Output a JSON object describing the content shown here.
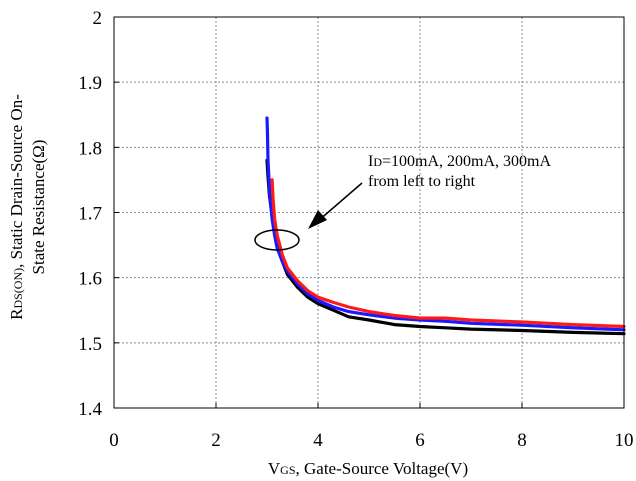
{
  "chart_data": {
    "type": "line",
    "xlim": [
      0,
      10
    ],
    "ylim": [
      1.4,
      2.0
    ],
    "xticks": [
      0,
      2,
      4,
      6,
      8,
      10
    ],
    "yticks": [
      1.4,
      1.5,
      1.6,
      1.7,
      1.8,
      1.9,
      2
    ],
    "xtick_labels": [
      "0",
      "2",
      "4",
      "6",
      "8",
      "10"
    ],
    "ytick_labels": [
      "1.4",
      "1.5",
      "1.6",
      "1.7",
      "1.8",
      "1.9",
      "2"
    ],
    "grid": true,
    "xlabel": {
      "main": "V",
      "sub": "GS",
      "rest": ", Gate-Source Voltage(V)"
    },
    "ylabel": {
      "line1": {
        "main": "R",
        "sub": "DS(ON)",
        "rest": ", Static Drain-Source On-"
      },
      "line2": "State Resistance(Ω)"
    },
    "annotation": {
      "line1": {
        "main": "I",
        "sub": "D",
        "rest": "=100mA, 200mA, 300mA"
      },
      "line2": "from left to right"
    },
    "series": [
      {
        "color": "#000000",
        "x": [
          3.0,
          3.02,
          3.05,
          3.1,
          3.15,
          3.2,
          3.3,
          3.4,
          3.6,
          3.8,
          4.0,
          4.3,
          4.6,
          5.0,
          5.5,
          6.0,
          6.5,
          7.0,
          8.0,
          9.0,
          10.0
        ],
        "y": [
          1.78,
          1.755,
          1.725,
          1.695,
          1.67,
          1.65,
          1.625,
          1.605,
          1.585,
          1.57,
          1.56,
          1.55,
          1.54,
          1.535,
          1.528,
          1.525,
          1.523,
          1.521,
          1.519,
          1.516,
          1.514
        ]
      },
      {
        "color": "#1a1aff",
        "x": [
          3.0,
          3.01,
          3.02,
          3.04,
          3.06,
          3.1,
          3.15,
          3.2,
          3.3,
          3.4,
          3.6,
          3.8,
          4.0,
          4.3,
          4.6,
          5.0,
          5.5,
          6.0,
          6.5,
          7.0,
          8.0,
          9.0,
          10.0
        ],
        "y": [
          1.845,
          1.82,
          1.78,
          1.75,
          1.72,
          1.69,
          1.665,
          1.645,
          1.625,
          1.61,
          1.59,
          1.575,
          1.565,
          1.555,
          1.548,
          1.543,
          1.538,
          1.535,
          1.533,
          1.53,
          1.527,
          1.523,
          1.52
        ]
      },
      {
        "color": "#ff1a1a",
        "x": [
          3.1,
          3.12,
          3.15,
          3.2,
          3.3,
          3.4,
          3.6,
          3.8,
          4.0,
          4.3,
          4.6,
          5.0,
          5.5,
          6.0,
          6.5,
          7.0,
          8.0,
          9.0,
          10.0
        ],
        "y": [
          1.75,
          1.72,
          1.69,
          1.665,
          1.635,
          1.615,
          1.595,
          1.58,
          1.57,
          1.562,
          1.555,
          1.548,
          1.542,
          1.538,
          1.538,
          1.535,
          1.532,
          1.528,
          1.525
        ]
      }
    ]
  }
}
